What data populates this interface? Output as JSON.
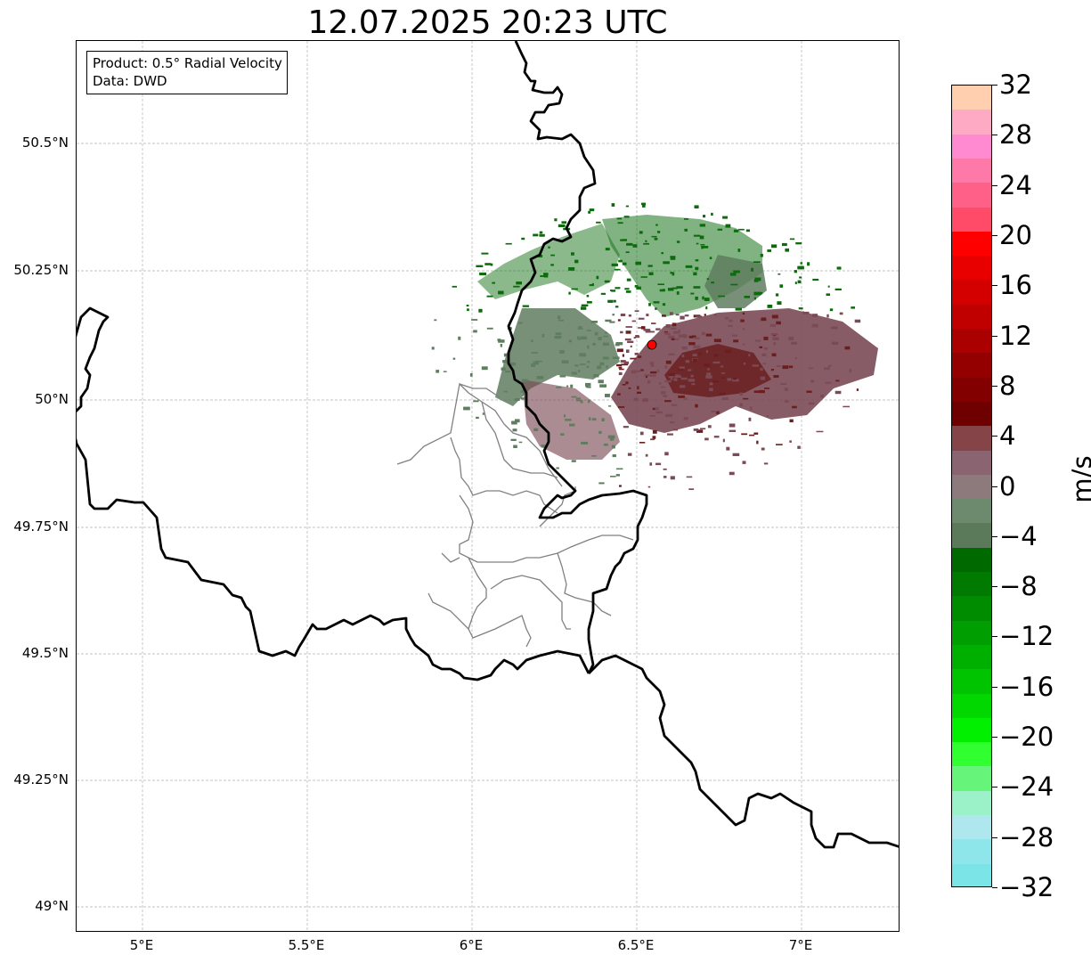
{
  "title": "12.07.2025 20:23 UTC",
  "info_box": {
    "line1": "Product: 0.5° Radial Velocity",
    "line2": "Data: DWD"
  },
  "map": {
    "lon_range": [
      4.8,
      7.3
    ],
    "lat_range": [
      48.95,
      50.7
    ],
    "gridlines": true,
    "lat_ticks": [
      {
        "value": 50.5,
        "label": "50.5°N"
      },
      {
        "value": 50.25,
        "label": "50.25°N"
      },
      {
        "value": 50.0,
        "label": "50°N"
      },
      {
        "value": 49.75,
        "label": "49.75°N"
      },
      {
        "value": 49.5,
        "label": "49.5°N"
      },
      {
        "value": 49.25,
        "label": "49.25°N"
      },
      {
        "value": 49.0,
        "label": "49°N"
      }
    ],
    "lon_ticks": [
      {
        "value": 5.0,
        "label": "5°E"
      },
      {
        "value": 5.5,
        "label": "5.5°E"
      },
      {
        "value": 6.0,
        "label": "6°E"
      },
      {
        "value": 6.5,
        "label": "6.5°E"
      },
      {
        "value": 7.0,
        "label": "7°E"
      }
    ],
    "radar_site": {
      "lon": 6.55,
      "lat": 50.11,
      "color": "#ff0000"
    },
    "borders": {
      "country_color": "#000000",
      "admin_color": "#808080"
    },
    "echo_colors": {
      "strong_outbound": "#6b1e1e",
      "outbound": "#7a4a55",
      "near_zero": "#5f7d5f",
      "inbound": "#0c6b0c"
    }
  },
  "colorbar": {
    "unit": "m/s",
    "min": -32,
    "max": 32,
    "ticks": [
      "32",
      "28",
      "24",
      "20",
      "16",
      "12",
      "8",
      "4",
      "0",
      "−4",
      "−8",
      "−12",
      "−16",
      "−20",
      "−24",
      "−28",
      "−32"
    ],
    "colors_top_to_bottom": [
      "#ffcfb0",
      "#ffaac5",
      "#ff8ad1",
      "#ff79a8",
      "#ff6088",
      "#ff4a68",
      "#ff0000",
      "#e80000",
      "#d40000",
      "#c00000",
      "#aa0000",
      "#940000",
      "#820000",
      "#6e0000",
      "#844448",
      "#8a6470",
      "#8c7a7c",
      "#6e8a6e",
      "#5a7a5a",
      "#006a00",
      "#007a00",
      "#008c00",
      "#009e00",
      "#00b000",
      "#00c400",
      "#00d800",
      "#00f000",
      "#30ff30",
      "#66f57a",
      "#9cf2c8",
      "#aee8ee",
      "#8ee6ea",
      "#7ae4e6"
    ]
  }
}
